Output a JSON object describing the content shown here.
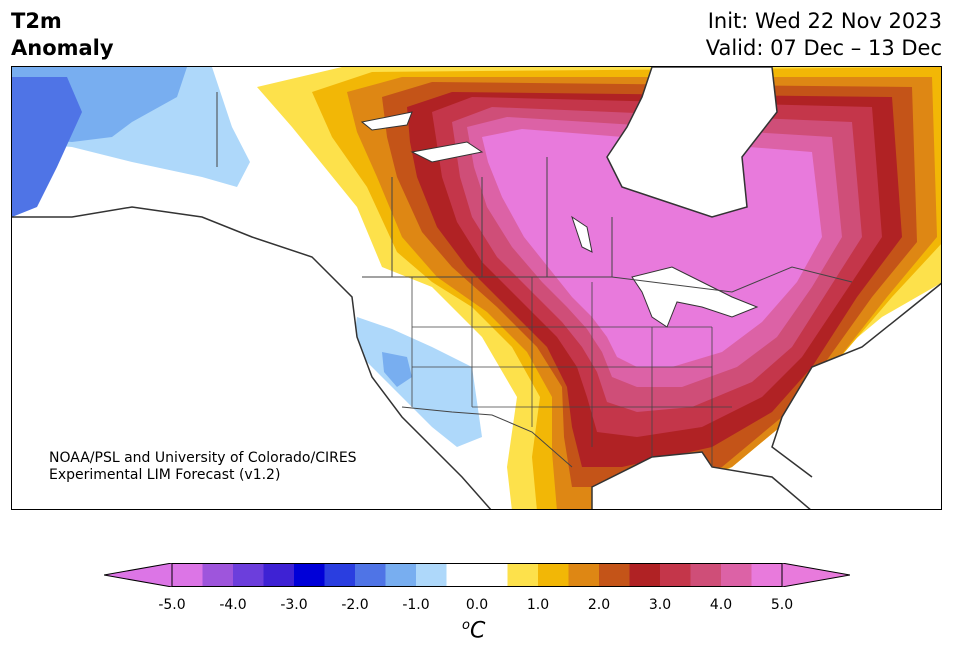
{
  "header": {
    "title_line1": "T2m",
    "title_line2": "Anomaly",
    "init_line": "Init: Wed 22 Nov 2023",
    "valid_line": "Valid: 07 Dec – 13 Dec"
  },
  "credit": {
    "line1": "NOAA/PSL and University of Colorado/CIRES",
    "line2": "Experimental LIM Forecast (v1.2)"
  },
  "colorbar": {
    "min": -5.0,
    "max": 5.0,
    "units_base": "C",
    "units_prefix": "o",
    "ticks": [
      "-5.0",
      "-4.0",
      "-3.0",
      "-2.0",
      "-1.0",
      "0.0",
      "1.0",
      "2.0",
      "3.0",
      "4.0",
      "5.0"
    ],
    "colors": [
      "#dc75e6",
      "#9e55dc",
      "#6c3edc",
      "#3e22d4",
      "#0000d8",
      "#2a3ee0",
      "#4f74e6",
      "#78aef0",
      "#aed8fa",
      "#ffffff",
      "#ffffff",
      "#fde14b",
      "#f2b706",
      "#de8714",
      "#c45418",
      "#b02224",
      "#c4364a",
      "#cf4e78",
      "#dc62a6",
      "#e87adc"
    ],
    "over_color": "#e87adc",
    "under_color": "#dc75e6"
  }
}
